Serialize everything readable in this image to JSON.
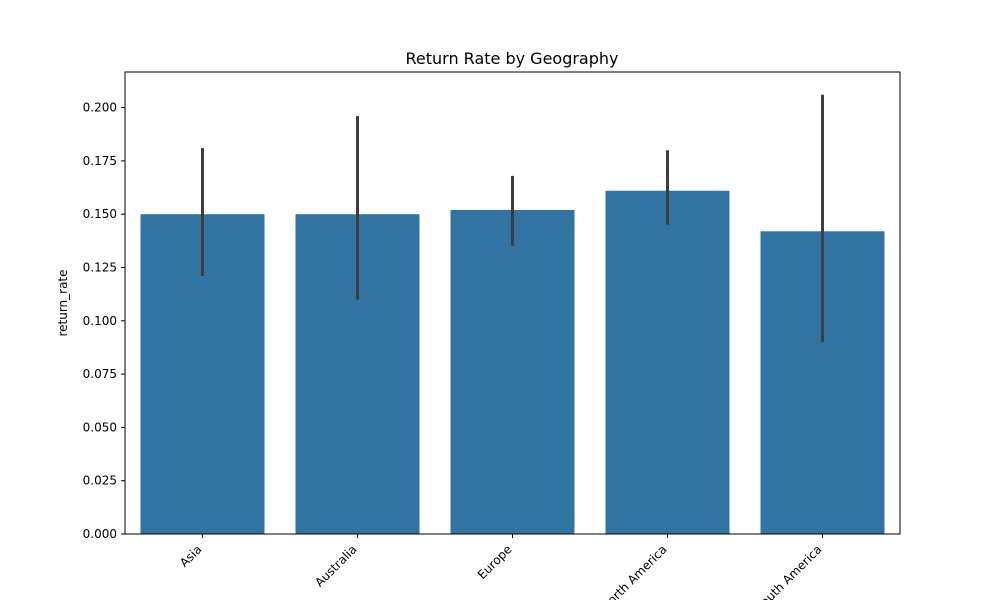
{
  "chart_data": {
    "type": "bar",
    "title": "Return Rate by Geography",
    "xlabel": "",
    "ylabel": "return_rate",
    "categories": [
      "Asia",
      "Australia",
      "Europe",
      "North America",
      "South America"
    ],
    "values": [
      0.15,
      0.15,
      0.152,
      0.161,
      0.142
    ],
    "error_bars": [
      [
        0.121,
        0.181
      ],
      [
        0.11,
        0.196
      ],
      [
        0.135,
        0.168
      ],
      [
        0.145,
        0.18
      ],
      [
        0.09,
        0.206
      ]
    ],
    "ylim": [
      0,
      0.2167
    ],
    "yticks": [
      "0.000",
      "0.025",
      "0.050",
      "0.075",
      "0.100",
      "0.125",
      "0.150",
      "0.175",
      "0.200"
    ],
    "grid": false,
    "colors": {
      "bar": "#3274a1",
      "error_bar": "#3d3d3d",
      "axis": "#000000"
    }
  }
}
